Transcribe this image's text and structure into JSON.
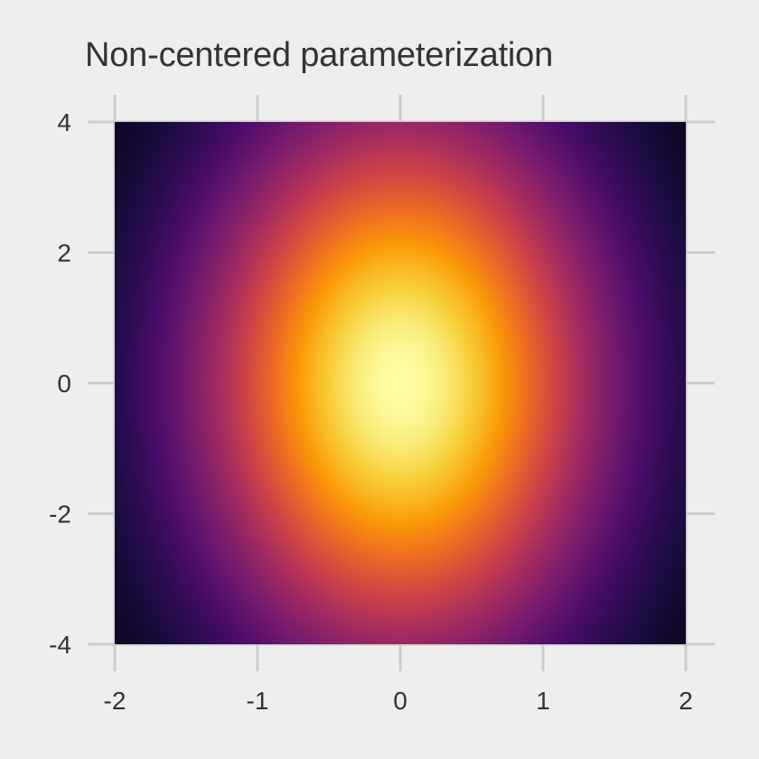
{
  "chart_data": {
    "type": "heatmap",
    "title": "Non-centered parameterization",
    "xlabel": "",
    "ylabel": "",
    "xlim": [
      -2,
      2
    ],
    "ylim": [
      -4,
      4
    ],
    "x_ticks": [
      -2,
      -1,
      0,
      1,
      2
    ],
    "y_ticks": [
      -4,
      -2,
      0,
      2,
      4
    ],
    "x_tick_labels": [
      "-2",
      "-1",
      "0",
      "1",
      "2"
    ],
    "y_tick_labels": [
      "-4",
      "-2",
      "0",
      "2",
      "4"
    ],
    "density": "independent normal, peak at (0, 0), sd_x 1, sd_y 3",
    "colormap": "inferno",
    "colormap_stops": [
      "#000004",
      "#1b0c41",
      "#4a0c6b",
      "#781c6d",
      "#a52c60",
      "#cf4446",
      "#ed6925",
      "#fb9b06",
      "#f7d13d",
      "#fcffa4"
    ],
    "grid": false,
    "legend": "none",
    "background": "#eeeeee",
    "tick_color": "#cccccc",
    "text_color": "#333333"
  }
}
